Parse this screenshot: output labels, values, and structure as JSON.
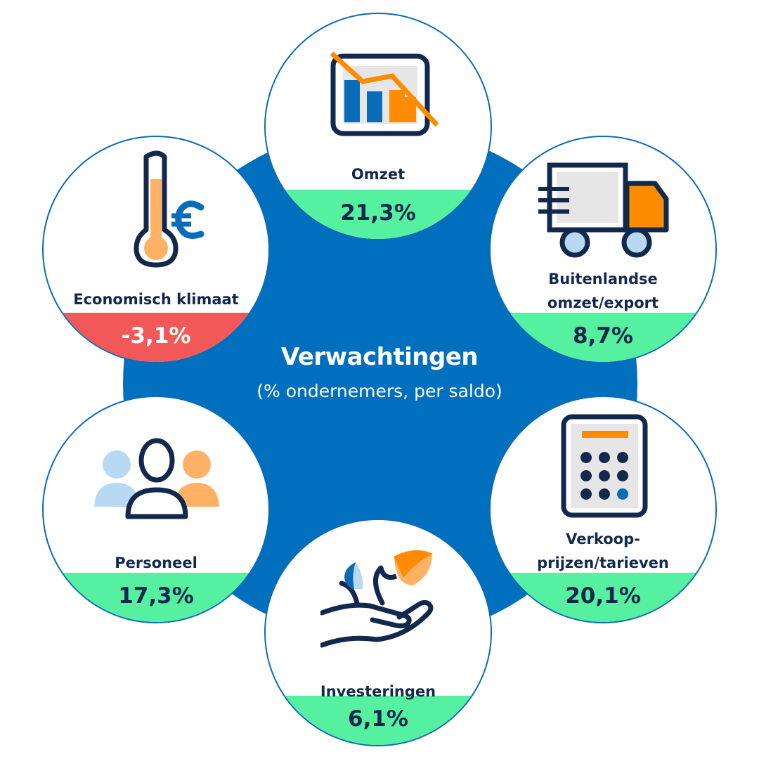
{
  "center": {
    "title": "Verwachtingen",
    "subtitle": "(% ondernemers, per saldo)"
  },
  "items": [
    {
      "label": "Omzet",
      "value": "21,3%",
      "status": "positive",
      "icon": "declining-chart-icon"
    },
    {
      "label_line1": "Buitenlandse",
      "label_line2": "omzet/export",
      "value": "8,7%",
      "status": "positive",
      "icon": "delivery-truck-icon"
    },
    {
      "label_line1": "Verkoop-",
      "label_line2": "prijzen/tarieven",
      "value": "20,1%",
      "status": "positive",
      "icon": "calculator-icon"
    },
    {
      "label": "Investeringen",
      "value": "6,1%",
      "status": "positive",
      "icon": "hand-sprout-icon"
    },
    {
      "label": "Personeel",
      "value": "17,3%",
      "status": "positive",
      "icon": "people-icon"
    },
    {
      "label": "Economisch klimaat",
      "value": "-3,1%",
      "status": "negative",
      "icon": "thermometer-euro-icon"
    }
  ],
  "colors": {
    "hub": "#0070be",
    "positive": "#56f0a1",
    "negative": "#f25858",
    "text": "#12284c",
    "accent_orange": "#ff8c00",
    "accent_blue": "#0a6bb8"
  }
}
